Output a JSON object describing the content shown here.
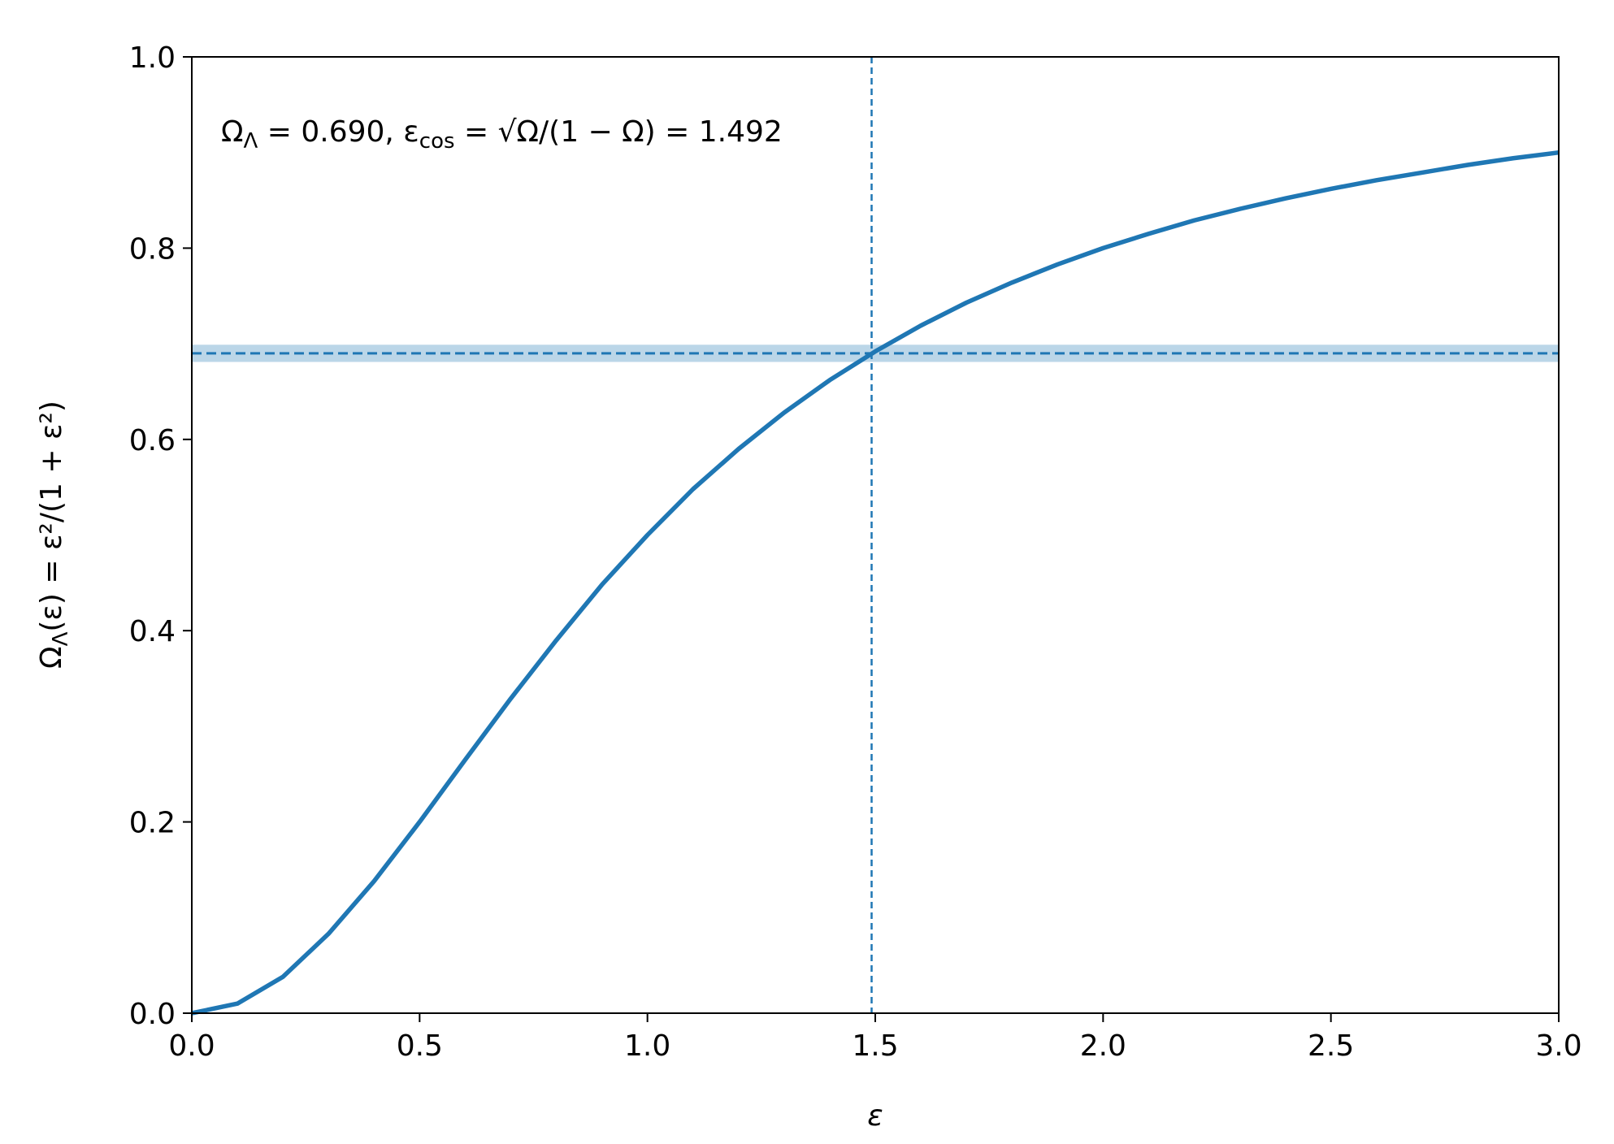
{
  "chart_data": {
    "type": "line",
    "annotation": [
      "Ω",
      "Λ",
      " = 0.690,  ε",
      "cos",
      " = √Ω/(1 − Ω) = 1.492"
    ],
    "xlabel": "ε",
    "ylabel": [
      "Ω",
      "Λ",
      "(ε) = ε²/(1 + ε²)"
    ],
    "x": [
      0,
      0.1,
      0.2,
      0.3,
      0.4,
      0.5,
      0.6,
      0.7,
      0.8,
      0.9,
      1.0,
      1.1,
      1.2,
      1.3,
      1.4,
      1.5,
      1.6,
      1.7,
      1.8,
      1.9,
      2.0,
      2.1,
      2.2,
      2.3,
      2.4,
      2.5,
      2.6,
      2.7,
      2.8,
      2.9,
      3.0
    ],
    "values": [
      0,
      0.01,
      0.038,
      0.083,
      0.138,
      0.2,
      0.265,
      0.329,
      0.39,
      0.448,
      0.5,
      0.548,
      0.59,
      0.628,
      0.662,
      0.692,
      0.719,
      0.743,
      0.764,
      0.783,
      0.8,
      0.815,
      0.829,
      0.841,
      0.852,
      0.862,
      0.871,
      0.879,
      0.887,
      0.894,
      0.9
    ],
    "color": "#1f77b4",
    "hline": 0.69,
    "hband": [
      0.681,
      0.699
    ],
    "vline": 1.492,
    "xlim": [
      0,
      3
    ],
    "ylim": [
      0,
      1
    ],
    "xticks": [
      {
        "value": 0,
        "label": "0.0"
      },
      {
        "value": 0.5,
        "label": "0.5"
      },
      {
        "value": 1,
        "label": "1.0"
      },
      {
        "value": 1.5,
        "label": "1.5"
      },
      {
        "value": 2,
        "label": "2.0"
      },
      {
        "value": 2.5,
        "label": "2.5"
      },
      {
        "value": 3,
        "label": "3.0"
      }
    ],
    "yticks": [
      {
        "value": 0,
        "label": "0.0"
      },
      {
        "value": 0.2,
        "label": "0.2"
      },
      {
        "value": 0.4,
        "label": "0.4"
      },
      {
        "value": 0.6,
        "label": "0.6"
      },
      {
        "value": 0.8,
        "label": "0.8"
      },
      {
        "value": 1,
        "label": "1.0"
      }
    ]
  }
}
